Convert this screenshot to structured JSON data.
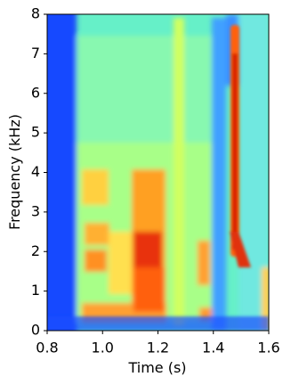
{
  "chart_data": {
    "type": "spectrogram",
    "xlabel": "Time (s)",
    "ylabel": "Frequency (kHz)",
    "xlim": [
      0.8,
      1.6
    ],
    "xticks": [
      0.8,
      {
        "value": 1,
        "label": "1.0"
      },
      1.2,
      1.4,
      1.6
    ],
    "ylim": [
      0,
      8
    ],
    "yticks": [
      0,
      1,
      2,
      3,
      4,
      5,
      6,
      7,
      8
    ]
  }
}
